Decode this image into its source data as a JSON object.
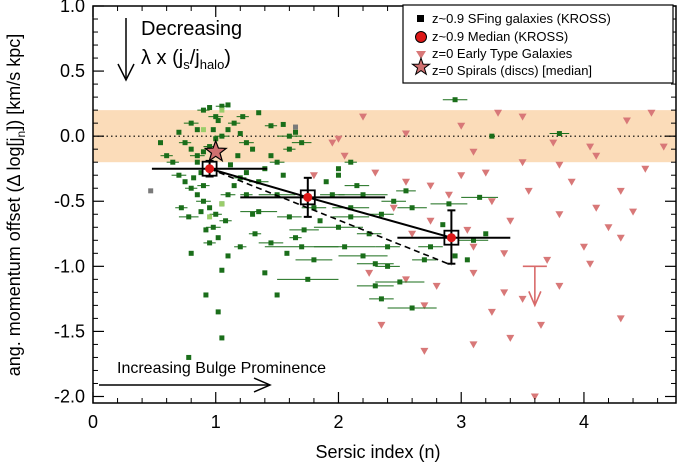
{
  "chart_data": {
    "type": "scatter",
    "title": "",
    "xlabel": "Sersic index (n)",
    "ylabel_parts": [
      "ang. momentum offset (",
      "Δ",
      " log[j",
      "n",
      "]) [km/s kpc]"
    ],
    "xlim": [
      0,
      4.75
    ],
    "ylim": [
      -2.05,
      1.0
    ],
    "x_ticks": [
      0,
      1,
      2,
      3,
      4
    ],
    "x_tick_labels": [
      "0",
      "1",
      "2",
      "3",
      "4"
    ],
    "y_ticks": [
      1.0,
      0.5,
      0.0,
      -0.5,
      -1.0,
      -1.5,
      -2.0
    ],
    "y_tick_labels": [
      "1.0",
      "0.5",
      "0.0",
      "-0.5",
      "-1.0",
      "-1.5",
      "-2.0"
    ],
    "band": {
      "y_low": -0.2,
      "y_high": 0.2,
      "color": "#fbdcb9"
    },
    "zero_line": {
      "y": 0
    },
    "colors": {
      "sfing": "#1a6e1a",
      "sfing_light": "#9acd6a",
      "sfing_gray": "#7a7a7a",
      "etg": "#d87878",
      "median": "#dd1818",
      "spiral": "#d07070",
      "arrow": "#d86a6a"
    },
    "legend": {
      "placement": "top-right",
      "entries": [
        {
          "label": "z~0.9 SFing galaxies (KROSS)",
          "marker": "square"
        },
        {
          "label": "z~0.9 Median (KROSS)",
          "marker": "circle"
        },
        {
          "label": "z=0 Early Type Galaxies",
          "marker": "triangle"
        },
        {
          "label": "z=0 Spirals (discs) [median]",
          "marker": "star"
        }
      ]
    },
    "annotations": {
      "decreasing_line1": "Decreasing",
      "decreasing_line2_parts": [
        "λ x (j",
        "s",
        "/j",
        "halo",
        ")"
      ],
      "bulge": "Increasing Bulge Prominence"
    },
    "median_kross": {
      "x": [
        0.95,
        1.75,
        2.92
      ],
      "y": [
        -0.25,
        -0.47,
        -0.78
      ],
      "x_err": [
        [
          0.48,
          1.42
        ],
        [
          1.2,
          2.38
        ],
        [
          2.48,
          3.4
        ]
      ],
      "y_err": [
        [
          -0.31,
          -0.19
        ],
        [
          -0.62,
          -0.32
        ],
        [
          -0.98,
          -0.57
        ]
      ]
    },
    "dashed_line": {
      "x": [
        0.95,
        2.92
      ],
      "y": [
        -0.25,
        -0.99
      ]
    },
    "spiral_median": {
      "x": 1.0,
      "y": -0.12
    },
    "upper_limit": {
      "x": 3.6,
      "y_start": -1.0,
      "y_end": -1.3
    },
    "sfing_points": [
      [
        0.8,
        0.1,
        0.06
      ],
      [
        0.85,
        0.05,
        0
      ],
      [
        0.9,
        0.2,
        0.05
      ],
      [
        0.95,
        0.22,
        0
      ],
      [
        1.0,
        0.15,
        0.06
      ],
      [
        1.05,
        0.23,
        0.05
      ],
      [
        1.1,
        0.24,
        0
      ],
      [
        0.7,
        0.03,
        0
      ],
      [
        0.75,
        -0.05,
        0.05
      ],
      [
        0.8,
        -0.1,
        0
      ],
      [
        0.85,
        -0.15,
        0.06
      ],
      [
        0.9,
        -0.12,
        0
      ],
      [
        0.95,
        -0.08,
        0.05
      ],
      [
        1.0,
        -0.02,
        0
      ],
      [
        1.05,
        0.0,
        0.06
      ],
      [
        1.1,
        0.05,
        0
      ],
      [
        1.15,
        0.1,
        0.05
      ],
      [
        1.2,
        0.02,
        0
      ],
      [
        1.25,
        -0.05,
        0.06
      ],
      [
        1.3,
        -0.1,
        0
      ],
      [
        1.22,
        0.15,
        0.05
      ],
      [
        1.35,
        0.18,
        0
      ],
      [
        0.65,
        -0.2,
        0.05
      ],
      [
        0.7,
        -0.3,
        0.06
      ],
      [
        0.75,
        -0.35,
        0
      ],
      [
        0.8,
        -0.4,
        0.05
      ],
      [
        0.85,
        -0.45,
        0
      ],
      [
        0.9,
        -0.5,
        0.06
      ],
      [
        0.95,
        -0.55,
        0
      ],
      [
        1.0,
        -0.6,
        0.05
      ],
      [
        1.05,
        -0.52,
        0
      ],
      [
        1.1,
        -0.45,
        0.06
      ],
      [
        1.15,
        -0.38,
        0
      ],
      [
        1.2,
        -0.32,
        0.05
      ],
      [
        1.25,
        -0.28,
        0
      ],
      [
        1.35,
        -0.35,
        0.08
      ],
      [
        1.4,
        -0.25,
        0
      ],
      [
        1.5,
        -0.2,
        0.06
      ],
      [
        1.55,
        -0.3,
        0
      ],
      [
        0.72,
        -0.55,
        0.05
      ],
      [
        0.78,
        -0.62,
        0.08
      ],
      [
        0.88,
        -0.58,
        0
      ],
      [
        0.98,
        -0.7,
        0.06
      ],
      [
        1.02,
        -0.78,
        0
      ],
      [
        1.08,
        -0.65,
        0.05
      ],
      [
        0.92,
        -0.72,
        0
      ],
      [
        0.95,
        -0.82,
        0.05
      ],
      [
        0.6,
        -0.15,
        0.05
      ],
      [
        0.55,
        -0.05,
        0
      ],
      [
        1.45,
        0.08,
        0.05
      ],
      [
        1.6,
        0.0,
        0.1
      ],
      [
        1.7,
        -0.05,
        0.08
      ],
      [
        1.65,
        0.03,
        0
      ],
      [
        1.5,
        -0.45,
        0.15
      ],
      [
        1.8,
        -0.55,
        0.1
      ],
      [
        1.35,
        -0.58,
        0.15
      ],
      [
        1.6,
        -0.62,
        0.1
      ],
      [
        1.72,
        -0.72,
        0.12
      ],
      [
        1.85,
        -0.65,
        0
      ],
      [
        2.0,
        -0.7,
        0.2
      ],
      [
        2.1,
        -0.55,
        0.15
      ],
      [
        2.2,
        -0.45,
        0.2
      ],
      [
        1.95,
        -0.45,
        0.1
      ],
      [
        1.9,
        -0.35,
        0
      ],
      [
        2.0,
        -0.3,
        0
      ],
      [
        2.15,
        -0.38,
        0.1
      ],
      [
        2.05,
        -0.85,
        0.25
      ],
      [
        1.7,
        -0.85,
        0.3
      ],
      [
        1.8,
        -0.95,
        0.15
      ],
      [
        2.2,
        -0.92,
        0.2
      ],
      [
        2.3,
        -0.98,
        0.15
      ],
      [
        2.4,
        -0.85,
        0.1
      ],
      [
        2.1,
        -0.62,
        0.15
      ],
      [
        2.35,
        -0.6,
        0.1
      ],
      [
        2.45,
        -0.5,
        0.1
      ],
      [
        2.6,
        -0.55,
        0.12
      ],
      [
        2.55,
        -0.42,
        0.08
      ],
      [
        2.4,
        -1.0,
        0.1
      ],
      [
        2.5,
        -1.12,
        0.2
      ],
      [
        2.3,
        -1.15,
        0.15
      ],
      [
        2.35,
        -1.25,
        0.1
      ],
      [
        2.6,
        -1.32,
        0.2
      ],
      [
        2.9,
        -0.52,
        0.15
      ],
      [
        3.1,
        -0.8,
        0.12
      ],
      [
        3.2,
        -0.75,
        0
      ],
      [
        2.95,
        0.28,
        0.1
      ],
      [
        3.15,
        -0.47,
        0.15
      ],
      [
        3.8,
        0.02,
        0.08
      ],
      [
        1.05,
        -1.03,
        0
      ],
      [
        1.1,
        -0.92,
        0
      ],
      [
        1.2,
        -0.85,
        0.05
      ],
      [
        1.4,
        -1.05,
        0
      ],
      [
        1.75,
        -1.1,
        0.25
      ],
      [
        1.5,
        -1.22,
        0
      ],
      [
        1.02,
        -1.35,
        0
      ],
      [
        0.92,
        -1.22,
        0
      ],
      [
        1.05,
        -1.55,
        0
      ],
      [
        0.78,
        -1.7,
        0
      ],
      [
        0.8,
        -0.9,
        0
      ],
      [
        0.85,
        -0.2,
        0
      ],
      [
        1.02,
        0.12,
        0
      ],
      [
        0.98,
        0.05,
        0
      ],
      [
        1.45,
        -0.15,
        0
      ],
      [
        1.55,
        0.09,
        0
      ],
      [
        1.6,
        -0.1,
        0.05
      ],
      [
        2.0,
        -0.25,
        0
      ],
      [
        2.1,
        -0.2,
        0.05
      ],
      [
        0.88,
        -0.28,
        0
      ],
      [
        0.82,
        -0.32,
        0
      ],
      [
        0.9,
        -0.38,
        0.05
      ],
      [
        1.12,
        -0.22,
        0
      ],
      [
        1.18,
        -0.15,
        0
      ],
      [
        1.25,
        -0.45,
        0.05
      ],
      [
        1.3,
        -0.6,
        0
      ],
      [
        1.32,
        -0.75,
        0.05
      ],
      [
        1.45,
        -0.82,
        0.1
      ],
      [
        1.58,
        -0.9,
        0
      ],
      [
        1.65,
        -0.78,
        0.05
      ],
      [
        2.25,
        -0.75,
        0.1
      ],
      [
        2.75,
        -0.85,
        0.1
      ],
      [
        2.85,
        -0.68,
        0
      ],
      [
        2.7,
        -0.95,
        0.1
      ],
      [
        2.95,
        -0.92,
        0
      ],
      [
        3.05,
        -0.95,
        0
      ],
      [
        3.25,
        0.0,
        0
      ]
    ],
    "sfing_light_points": [
      [
        1.05,
        0.2
      ],
      [
        0.9,
        0.05
      ],
      [
        1.05,
        -0.52
      ],
      [
        0.95,
        -0.62
      ]
    ],
    "sfing_gray_points": [
      [
        0.47,
        -0.42
      ],
      [
        1.65,
        0.07
      ]
    ],
    "etg_points": [
      [
        2.0,
        -0.02
      ],
      [
        2.2,
        0.15
      ],
      [
        2.55,
        0.02
      ],
      [
        3.0,
        0.08
      ],
      [
        3.1,
        -0.12
      ],
      [
        3.3,
        0.18
      ],
      [
        3.5,
        0.15
      ],
      [
        3.75,
        -0.05
      ],
      [
        4.05,
        -0.08
      ],
      [
        4.35,
        0.12
      ],
      [
        4.55,
        0.18
      ],
      [
        4.65,
        -0.08
      ],
      [
        3.8,
        -0.22
      ],
      [
        4.1,
        -0.15
      ],
      [
        4.5,
        -0.25
      ],
      [
        3.5,
        -0.2
      ],
      [
        3.2,
        -0.28
      ],
      [
        3.0,
        -0.3
      ],
      [
        2.75,
        -0.38
      ],
      [
        2.55,
        -0.35
      ],
      [
        2.9,
        -0.45
      ],
      [
        3.25,
        -0.5
      ],
      [
        3.55,
        -0.42
      ],
      [
        3.9,
        -0.35
      ],
      [
        4.3,
        -0.42
      ],
      [
        2.3,
        -0.28
      ],
      [
        2.45,
        -0.55
      ],
      [
        2.75,
        -0.65
      ],
      [
        3.05,
        -0.72
      ],
      [
        3.4,
        -0.65
      ],
      [
        3.8,
        -0.6
      ],
      [
        4.1,
        -0.55
      ],
      [
        4.2,
        -0.7
      ],
      [
        4.4,
        -0.58
      ],
      [
        2.6,
        -0.75
      ],
      [
        3.1,
        -0.85
      ],
      [
        3.35,
        -0.9
      ],
      [
        3.7,
        -0.95
      ],
      [
        4.0,
        -0.85
      ],
      [
        4.3,
        -0.78
      ],
      [
        2.25,
        -1.05
      ],
      [
        2.55,
        -1.1
      ],
      [
        2.8,
        -1.15
      ],
      [
        3.1,
        -1.05
      ],
      [
        3.35,
        -1.2
      ],
      [
        3.5,
        -1.25
      ],
      [
        3.8,
        -1.15
      ],
      [
        4.05,
        -0.98
      ],
      [
        2.7,
        -1.3
      ],
      [
        3.25,
        -1.35
      ],
      [
        2.35,
        -1.45
      ],
      [
        3.65,
        -1.45
      ],
      [
        3.4,
        -1.55
      ],
      [
        4.3,
        -1.4
      ],
      [
        2.7,
        -1.65
      ],
      [
        3.1,
        -1.6
      ],
      [
        3.6,
        -2.0
      ],
      [
        1.95,
        -0.05
      ],
      [
        2.05,
        -0.15
      ],
      [
        1.8,
        -0.3
      ]
    ]
  }
}
